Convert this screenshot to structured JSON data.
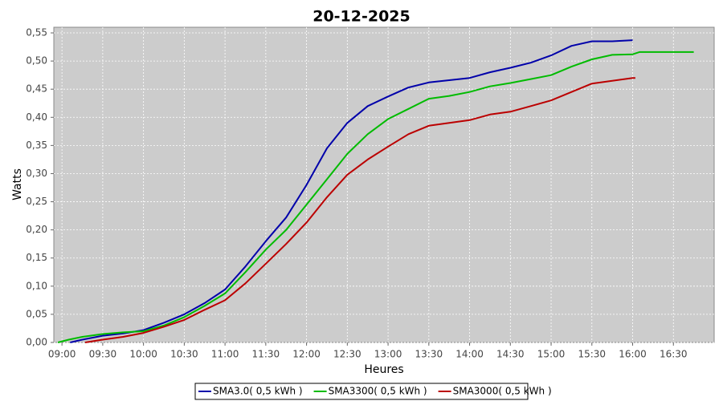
{
  "chart_data": {
    "type": "line",
    "title": "20-12-2025",
    "xlabel": "Heures",
    "ylabel": "Watts",
    "xlim": [
      "08:54",
      "17:00"
    ],
    "ylim": [
      0,
      0.56
    ],
    "x_ticks": [
      "09:00",
      "09:30",
      "10:00",
      "10:30",
      "11:00",
      "11:30",
      "12:00",
      "12:30",
      "13:00",
      "13:30",
      "14:00",
      "14:30",
      "15:00",
      "15:30",
      "16:00",
      "16:30"
    ],
    "y_ticks": [
      "0,00",
      "0,05",
      "0,10",
      "0,15",
      "0,20",
      "0,25",
      "0,30",
      "0,35",
      "0,40",
      "0,45",
      "0,50",
      "0,55"
    ],
    "grid": true,
    "legend": "bottom",
    "colors": {
      "plot_background": "#cccccc",
      "grid": "#ffffff"
    },
    "series": [
      {
        "name": "SMA3.0( 0,5 kWh )",
        "color": "#0000aa",
        "x": [
          "09:06",
          "09:15",
          "09:30",
          "09:45",
          "10:00",
          "10:15",
          "10:30",
          "10:45",
          "11:00",
          "11:15",
          "11:30",
          "11:45",
          "12:00",
          "12:15",
          "12:30",
          "12:45",
          "13:00",
          "13:15",
          "13:30",
          "13:45",
          "14:00",
          "14:15",
          "14:30",
          "14:45",
          "15:00",
          "15:15",
          "15:30",
          "15:45",
          "16:00"
        ],
        "values": [
          0.0,
          0.005,
          0.012,
          0.016,
          0.022,
          0.035,
          0.05,
          0.07,
          0.094,
          0.135,
          0.18,
          0.222,
          0.28,
          0.345,
          0.39,
          0.42,
          0.437,
          0.453,
          0.462,
          0.466,
          0.47,
          0.48,
          0.488,
          0.497,
          0.51,
          0.527,
          0.535,
          0.535,
          0.537
        ]
      },
      {
        "name": "SMA3300( 0,5 kWh )",
        "color": "#00bb00",
        "x": [
          "08:57",
          "09:05",
          "09:15",
          "09:30",
          "09:45",
          "10:00",
          "10:15",
          "10:30",
          "10:45",
          "11:00",
          "11:15",
          "11:30",
          "11:45",
          "12:00",
          "12:15",
          "12:30",
          "12:45",
          "13:00",
          "13:15",
          "13:30",
          "13:45",
          "14:00",
          "14:15",
          "14:30",
          "14:45",
          "15:00",
          "15:15",
          "15:30",
          "15:45",
          "16:00",
          "16:05",
          "16:25",
          "16:45"
        ],
        "values": [
          0.0,
          0.005,
          0.01,
          0.015,
          0.018,
          0.02,
          0.03,
          0.045,
          0.065,
          0.087,
          0.125,
          0.165,
          0.2,
          0.245,
          0.29,
          0.335,
          0.37,
          0.397,
          0.415,
          0.433,
          0.438,
          0.445,
          0.455,
          0.461,
          0.468,
          0.475,
          0.49,
          0.503,
          0.511,
          0.512,
          0.516,
          0.516,
          0.516
        ]
      },
      {
        "name": "SMA3000( 0,5 kWh )",
        "color": "#bb0000",
        "x": [
          "09:17",
          "09:30",
          "09:45",
          "10:00",
          "10:15",
          "10:30",
          "10:45",
          "11:00",
          "11:15",
          "11:30",
          "11:45",
          "12:00",
          "12:15",
          "12:30",
          "12:45",
          "13:00",
          "13:15",
          "13:30",
          "13:45",
          "14:00",
          "14:15",
          "14:30",
          "14:45",
          "15:00",
          "15:15",
          "15:30",
          "15:45",
          "16:00",
          "16:02"
        ],
        "values": [
          0.0,
          0.005,
          0.01,
          0.017,
          0.028,
          0.04,
          0.058,
          0.075,
          0.105,
          0.14,
          0.175,
          0.213,
          0.258,
          0.298,
          0.325,
          0.348,
          0.37,
          0.385,
          0.39,
          0.395,
          0.405,
          0.41,
          0.42,
          0.43,
          0.445,
          0.46,
          0.465,
          0.47,
          0.47
        ]
      }
    ]
  }
}
